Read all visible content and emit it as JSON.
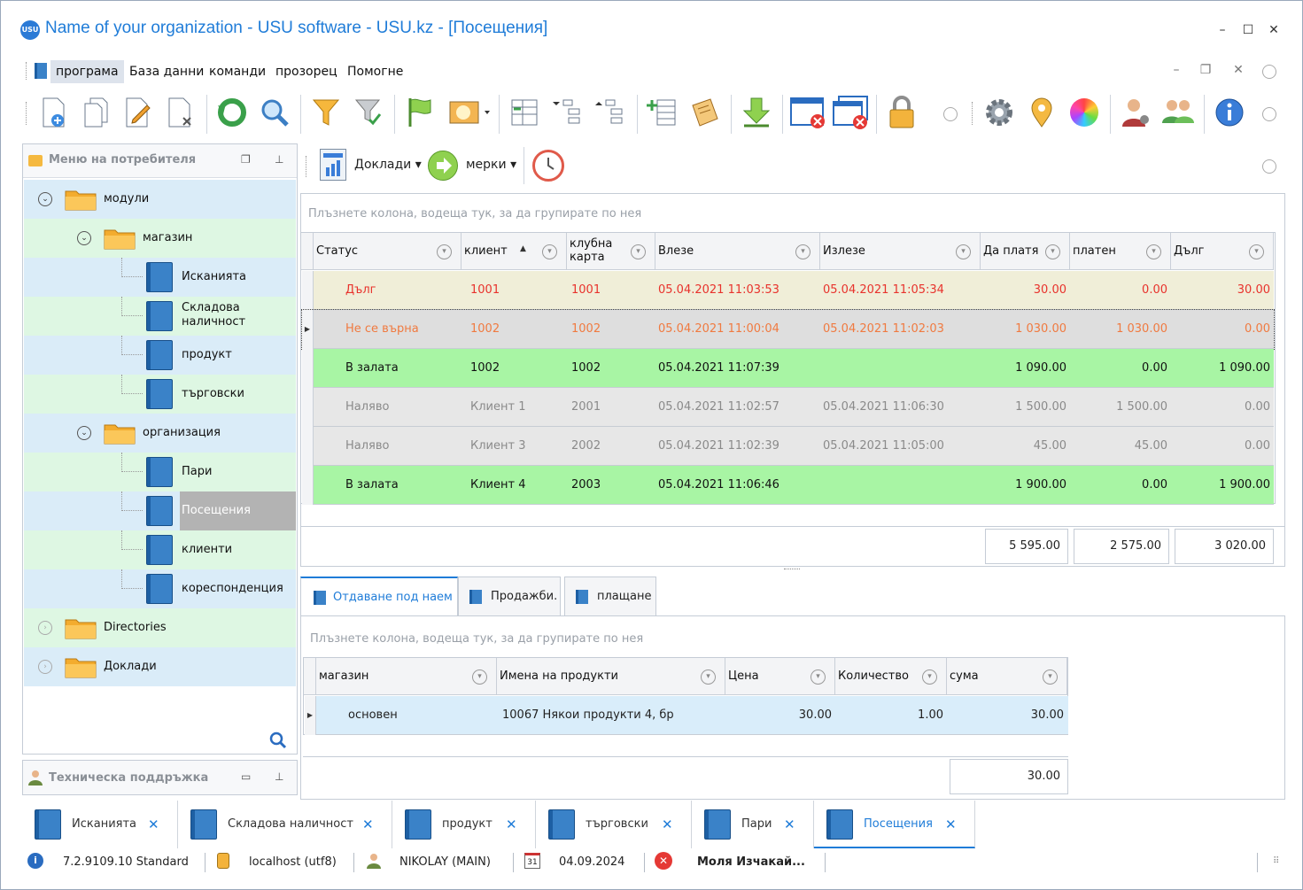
{
  "window": {
    "title": "Name of your organization - USU software - USU.kz - [Посещения]",
    "logo_text": "USU",
    "buttons": [
      "–",
      "☐",
      "✕"
    ]
  },
  "menu": {
    "items": [
      "програма",
      "База данни",
      "команди",
      "прозорец",
      "Помогне"
    ],
    "mdi_buttons": [
      "–",
      "❐",
      "✕"
    ]
  },
  "sidebar": {
    "title": "Меню на потребителя",
    "tree": [
      {
        "label": "модули",
        "level": 0,
        "type": "folder",
        "expanded": true
      },
      {
        "label": "магазин",
        "level": 1,
        "type": "folder",
        "expanded": true
      },
      {
        "label": "Исканията",
        "level": 2,
        "type": "book"
      },
      {
        "label": "Складова наличност",
        "level": 2,
        "type": "book"
      },
      {
        "label": "продукт",
        "level": 2,
        "type": "book"
      },
      {
        "label": "търговски",
        "level": 2,
        "type": "book"
      },
      {
        "label": "организация",
        "level": 1,
        "type": "folder",
        "expanded": true
      },
      {
        "label": "Пари",
        "level": 2,
        "type": "book"
      },
      {
        "label": "Посещения",
        "level": 2,
        "type": "book",
        "selected": true
      },
      {
        "label": "клиенти",
        "level": 2,
        "type": "book"
      },
      {
        "label": "кореспонденция",
        "level": 2,
        "type": "book"
      },
      {
        "label": "Directories",
        "level": 0,
        "type": "folder",
        "expanded": false
      },
      {
        "label": "Доклади",
        "level": 0,
        "type": "folder",
        "expanded": false
      }
    ],
    "support_title": "Техническа поддръжка"
  },
  "subtoolbar": {
    "reports_label": "Доклади",
    "actions_label": "мерки"
  },
  "grid1": {
    "group_hint": "Плъзнете колона, водеща тук, за да групирате по нея",
    "columns": [
      "Статус",
      "клиент",
      "клубна карта",
      "Влезе",
      "Излезе",
      "Да платя",
      "платен",
      "Дълг"
    ],
    "rows": [
      {
        "status": "Дълг",
        "client": "1001",
        "card": "1001",
        "in": "05.04.2021 11:03:53",
        "out": "05.04.2021 11:05:34",
        "to_pay": "30.00",
        "paid": "0.00",
        "debt": "30.00",
        "style": "debt"
      },
      {
        "status": "Не се върна",
        "client": "1002",
        "card": "1002",
        "in": "05.04.2021 11:00:04",
        "out": "05.04.2021 11:02:03",
        "to_pay": "1 030.00",
        "paid": "1 030.00",
        "debt": "0.00",
        "style": "notback"
      },
      {
        "status": "В залата",
        "client": "1002",
        "card": "1002",
        "in": "05.04.2021 11:07:39",
        "out": "",
        "to_pay": "1 090.00",
        "paid": "0.00",
        "debt": "1 090.00",
        "style": "inhall"
      },
      {
        "status": "Наляво",
        "client": "Клиент 1",
        "card": "2001",
        "in": "05.04.2021 11:02:57",
        "out": "05.04.2021 11:06:30",
        "to_pay": "1 500.00",
        "paid": "1 500.00",
        "debt": "0.00",
        "style": "left"
      },
      {
        "status": "Наляво",
        "client": "Клиент 3",
        "card": "2002",
        "in": "05.04.2021 11:02:39",
        "out": "05.04.2021 11:05:00",
        "to_pay": "45.00",
        "paid": "45.00",
        "debt": "0.00",
        "style": "left"
      },
      {
        "status": "В залата",
        "client": "Клиент 4",
        "card": "2003",
        "in": "05.04.2021 11:06:46",
        "out": "",
        "to_pay": "1 900.00",
        "paid": "0.00",
        "debt": "1 900.00",
        "style": "inhall"
      }
    ],
    "totals": {
      "to_pay": "5 595.00",
      "paid": "2 575.00",
      "debt": "3 020.00"
    }
  },
  "detail_tabs": [
    "Отдаване под наем",
    "Продажби.",
    "плащане"
  ],
  "grid2": {
    "group_hint": "Плъзнете колона, водеща тук, за да групирате по нея",
    "columns": [
      "магазин",
      "Имена на продукти",
      "Цена",
      "Количество",
      "сума"
    ],
    "rows": [
      {
        "store": "основен",
        "product": "10067 Някои продукти 4, бр",
        "price": "30.00",
        "qty": "1.00",
        "sum": "30.00"
      }
    ],
    "total": "30.00"
  },
  "doc_tabs": [
    "Исканията",
    "Складова наличност",
    "продукт",
    "търговски",
    "Пари",
    "Посещения"
  ],
  "statusbar": {
    "version": "7.2.9109.10 Standard",
    "db": "localhost (utf8)",
    "user": "NIKOLAY (MAIN)",
    "calendar_day": "31",
    "date": "04.09.2024",
    "message": "Моля Изчакай..."
  },
  "colors": {
    "accent": "#1f7cd8",
    "debt_row": "#f0eed8",
    "inhall_row": "#a8f5a4",
    "left_row": "#e7e7e7",
    "red_text": "#e8322c",
    "orange_text": "#f07a40"
  }
}
